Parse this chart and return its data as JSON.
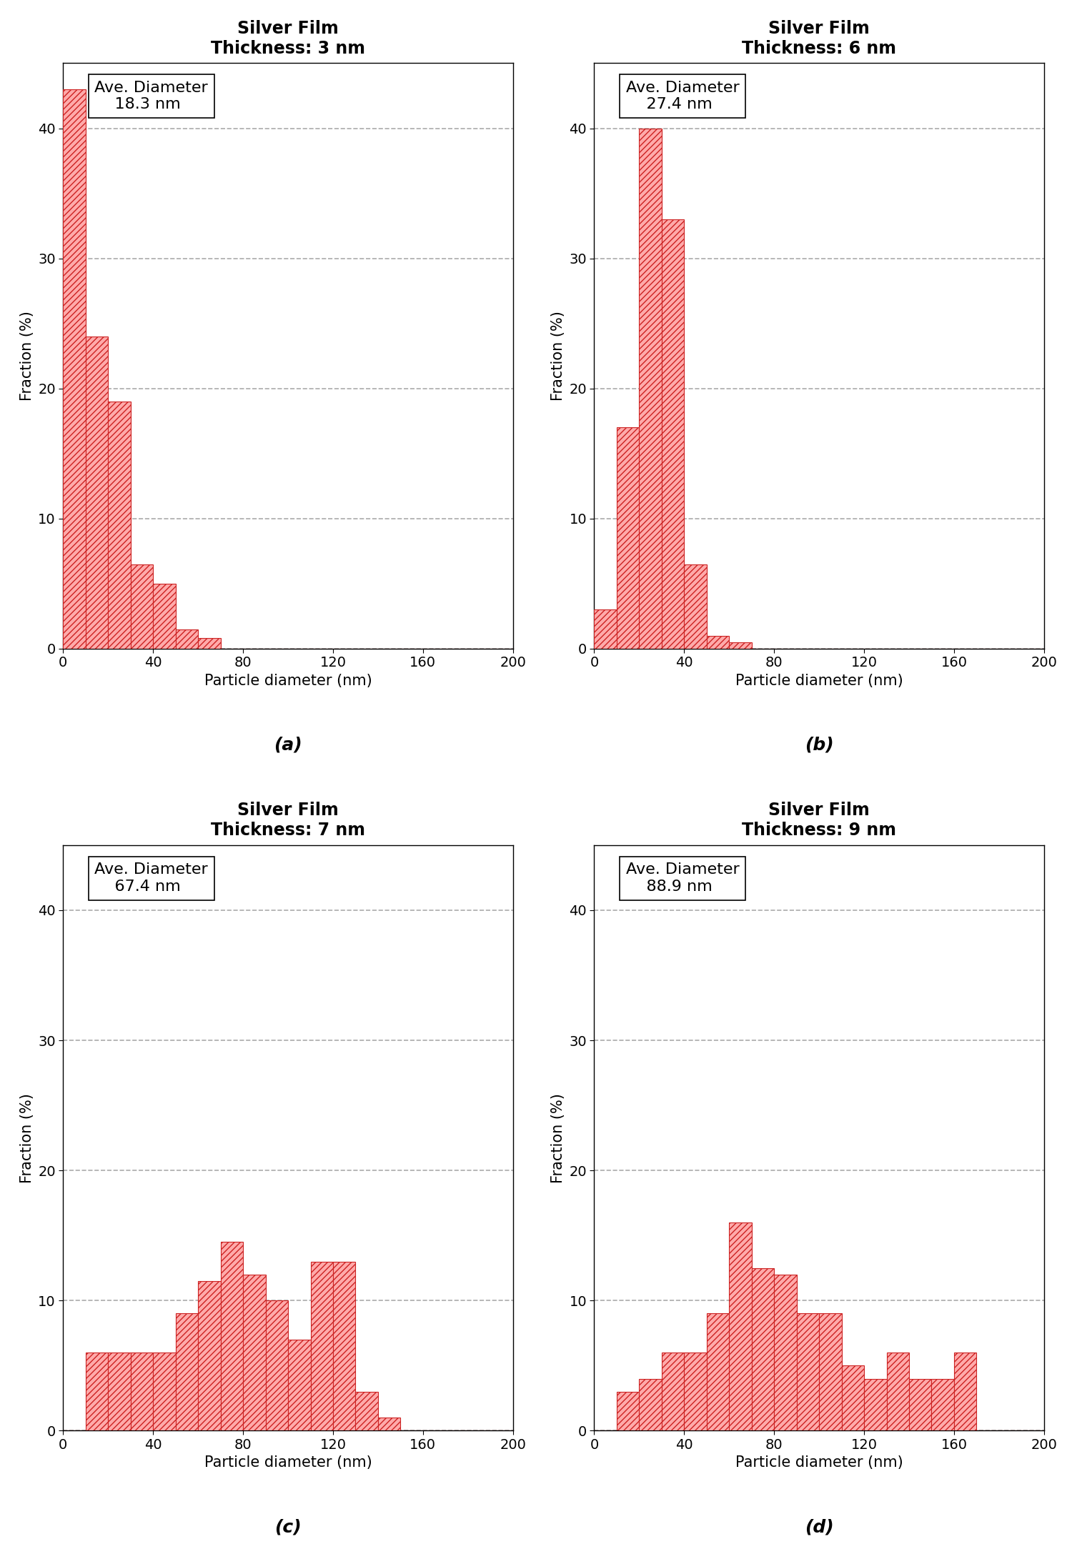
{
  "panels": [
    {
      "title": "Silver Film\nThickness: 3 nm",
      "ave_diameter": "18.3 nm",
      "label": "(a)",
      "bin_edges": [
        0,
        10,
        20,
        30,
        40,
        50,
        60,
        70,
        80,
        90,
        100,
        110,
        120,
        130,
        140,
        150,
        160,
        170,
        180,
        190,
        200
      ],
      "heights": [
        43,
        24,
        19,
        6.5,
        5,
        1.5,
        0.8,
        0,
        0,
        0,
        0,
        0,
        0,
        0,
        0,
        0,
        0,
        0,
        0,
        0
      ]
    },
    {
      "title": "Silver Film\nThickness: 6 nm",
      "ave_diameter": "27.4 nm",
      "label": "(b)",
      "bin_edges": [
        0,
        10,
        20,
        30,
        40,
        50,
        60,
        70,
        80,
        90,
        100,
        110,
        120,
        130,
        140,
        150,
        160,
        170,
        180,
        190,
        200
      ],
      "heights": [
        3,
        17,
        40,
        33,
        6.5,
        1,
        0.5,
        0,
        0,
        0,
        0,
        0,
        0,
        0,
        0,
        0,
        0,
        0,
        0,
        0
      ]
    },
    {
      "title": "Silver Film\nThickness: 7 nm",
      "ave_diameter": "67.4 nm",
      "label": "(c)",
      "bin_edges": [
        0,
        10,
        20,
        30,
        40,
        50,
        60,
        70,
        80,
        90,
        100,
        110,
        120,
        130,
        140,
        150,
        160,
        170,
        180,
        190,
        200
      ],
      "heights": [
        0,
        6,
        6,
        6,
        6,
        9,
        11.5,
        14.5,
        12,
        10,
        7,
        13,
        13,
        3,
        1,
        0,
        0,
        0,
        0,
        0
      ]
    },
    {
      "title": "Silver Film\nThickness: 9 nm",
      "ave_diameter": "88.9 nm",
      "label": "(d)",
      "bin_edges": [
        0,
        10,
        20,
        30,
        40,
        50,
        60,
        70,
        80,
        90,
        100,
        110,
        120,
        130,
        140,
        150,
        160,
        170,
        180,
        190,
        200
      ],
      "heights": [
        0,
        3,
        4,
        6,
        6,
        9,
        16,
        12.5,
        12,
        9,
        9,
        5,
        4,
        6,
        4,
        4,
        6,
        0,
        0,
        0
      ]
    }
  ],
  "bar_facecolor": "#ffaaaa",
  "bar_edgecolor": "#cc2222",
  "bar_hatch": "////",
  "ylim": [
    0,
    45
  ],
  "yticks": [
    0,
    10,
    20,
    30,
    40
  ],
  "xlim": [
    0,
    200
  ],
  "xticks": [
    0,
    40,
    80,
    120,
    160,
    200
  ],
  "xlabel": "Particle diameter (nm)",
  "ylabel": "Fraction (%)",
  "grid_color": "#aaaaaa",
  "grid_style": "--",
  "title_fontsize": 17,
  "label_fontsize": 15,
  "tick_fontsize": 14,
  "annot_fontsize": 16,
  "sublabel_fontsize": 18
}
